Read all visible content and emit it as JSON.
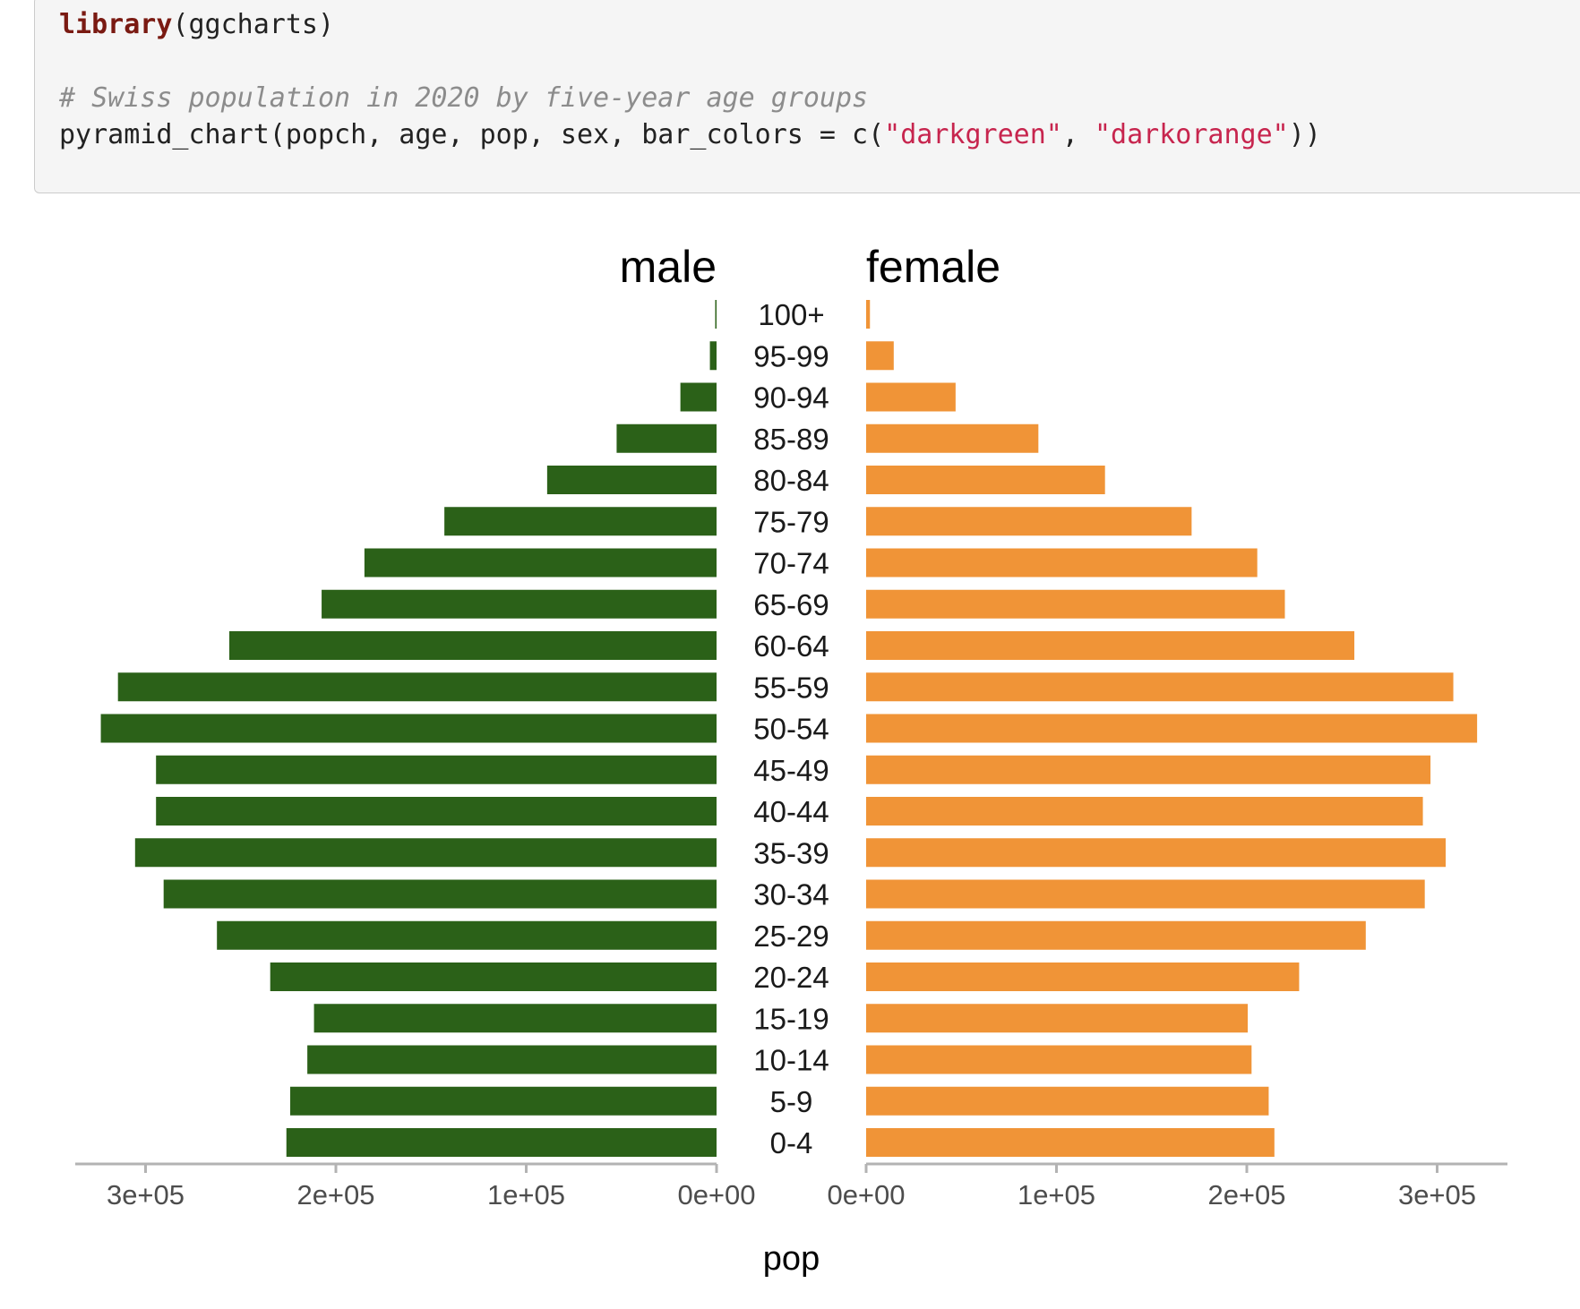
{
  "code": {
    "line1": {
      "fn": "library",
      "rest": "(ggcharts)"
    },
    "comment": "# Swiss population in 2020 by five-year age groups",
    "line3": {
      "pre": "pyramid_chart(popch, age, pop, sex, bar_colors = c(",
      "str1": "\"darkgreen\"",
      "sep": ", ",
      "str2": "\"darkorange\"",
      "post": "))"
    }
  },
  "chart_data": {
    "type": "bar",
    "orientation": "horizontal-pyramid",
    "categories": [
      "100+",
      "95-99",
      "90-94",
      "85-89",
      "80-84",
      "75-79",
      "70-74",
      "65-69",
      "60-64",
      "55-59",
      "50-54",
      "45-49",
      "40-44",
      "35-39",
      "30-34",
      "25-29",
      "20-24",
      "15-19",
      "10-14",
      "5-9",
      "0-4"
    ],
    "series": [
      {
        "name": "male",
        "color": "#2b6118",
        "values": [
          500,
          3500,
          19000,
          52500,
          89000,
          143000,
          185000,
          207500,
          256000,
          314500,
          323500,
          294500,
          294500,
          305500,
          290500,
          262500,
          234500,
          211500,
          215000,
          224000,
          226000
        ]
      },
      {
        "name": "female",
        "color": "#f09437",
        "values": [
          2000,
          14500,
          47000,
          90500,
          125500,
          171000,
          205500,
          220000,
          256500,
          308500,
          321000,
          296500,
          292500,
          304500,
          293500,
          262500,
          227500,
          200500,
          202500,
          211500,
          214500
        ]
      }
    ],
    "xlabel": "pop",
    "xlim": [
      0,
      330000
    ],
    "xticks": [
      0,
      100000,
      200000,
      300000
    ],
    "xtick_labels": [
      "0e+00",
      "1e+05",
      "2e+05",
      "3e+05"
    ]
  }
}
